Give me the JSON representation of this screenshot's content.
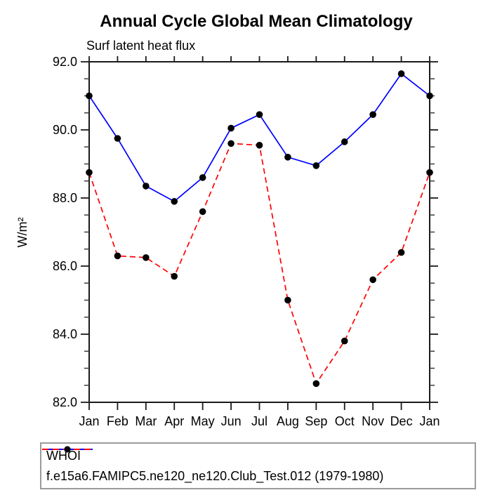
{
  "title": "Annual Cycle Global Mean Climatology",
  "subtitle": "Surf latent heat flux",
  "ylabel": "W/m²",
  "chart_data": {
    "type": "line",
    "title": "Annual Cycle Global Mean Climatology",
    "subtitle": "Surf latent heat flux",
    "xlabel": "",
    "ylabel": "W/m²",
    "categories": [
      "Jan",
      "Feb",
      "Mar",
      "Apr",
      "May",
      "Jun",
      "Jul",
      "Aug",
      "Sep",
      "Oct",
      "Nov",
      "Dec",
      "Jan"
    ],
    "ylim": [
      82.0,
      92.0
    ],
    "y_major_ticks": [
      92.0,
      90.0,
      88.0,
      86.0,
      84.0,
      82.0
    ],
    "y_tick_labels": [
      "92.0",
      "90.0",
      "88.0",
      "86.0",
      "84.0",
      "82.0"
    ],
    "y_minor_step": 0.5,
    "grid": false,
    "legend_position": "bottom-left",
    "frame_color": "#1a1a1a",
    "marker": "filled-circle",
    "marker_color": "#000000",
    "series": [
      {
        "name": "WHOI",
        "color": "#0000ff",
        "line_style": "solid",
        "values": [
          91.0,
          89.75,
          88.35,
          87.9,
          88.6,
          90.05,
          90.45,
          89.2,
          88.95,
          89.65,
          90.45,
          91.65,
          91.0
        ]
      },
      {
        "name": "f.e15a6.FAMIPC5.ne120_ne120.Club_Test.012 (1979-1980)",
        "color": "#ff0000",
        "line_style": "dashed",
        "values": [
          88.75,
          86.3,
          86.25,
          85.7,
          87.6,
          89.6,
          89.55,
          85.0,
          82.55,
          83.8,
          85.6,
          86.4,
          88.75
        ]
      }
    ]
  }
}
